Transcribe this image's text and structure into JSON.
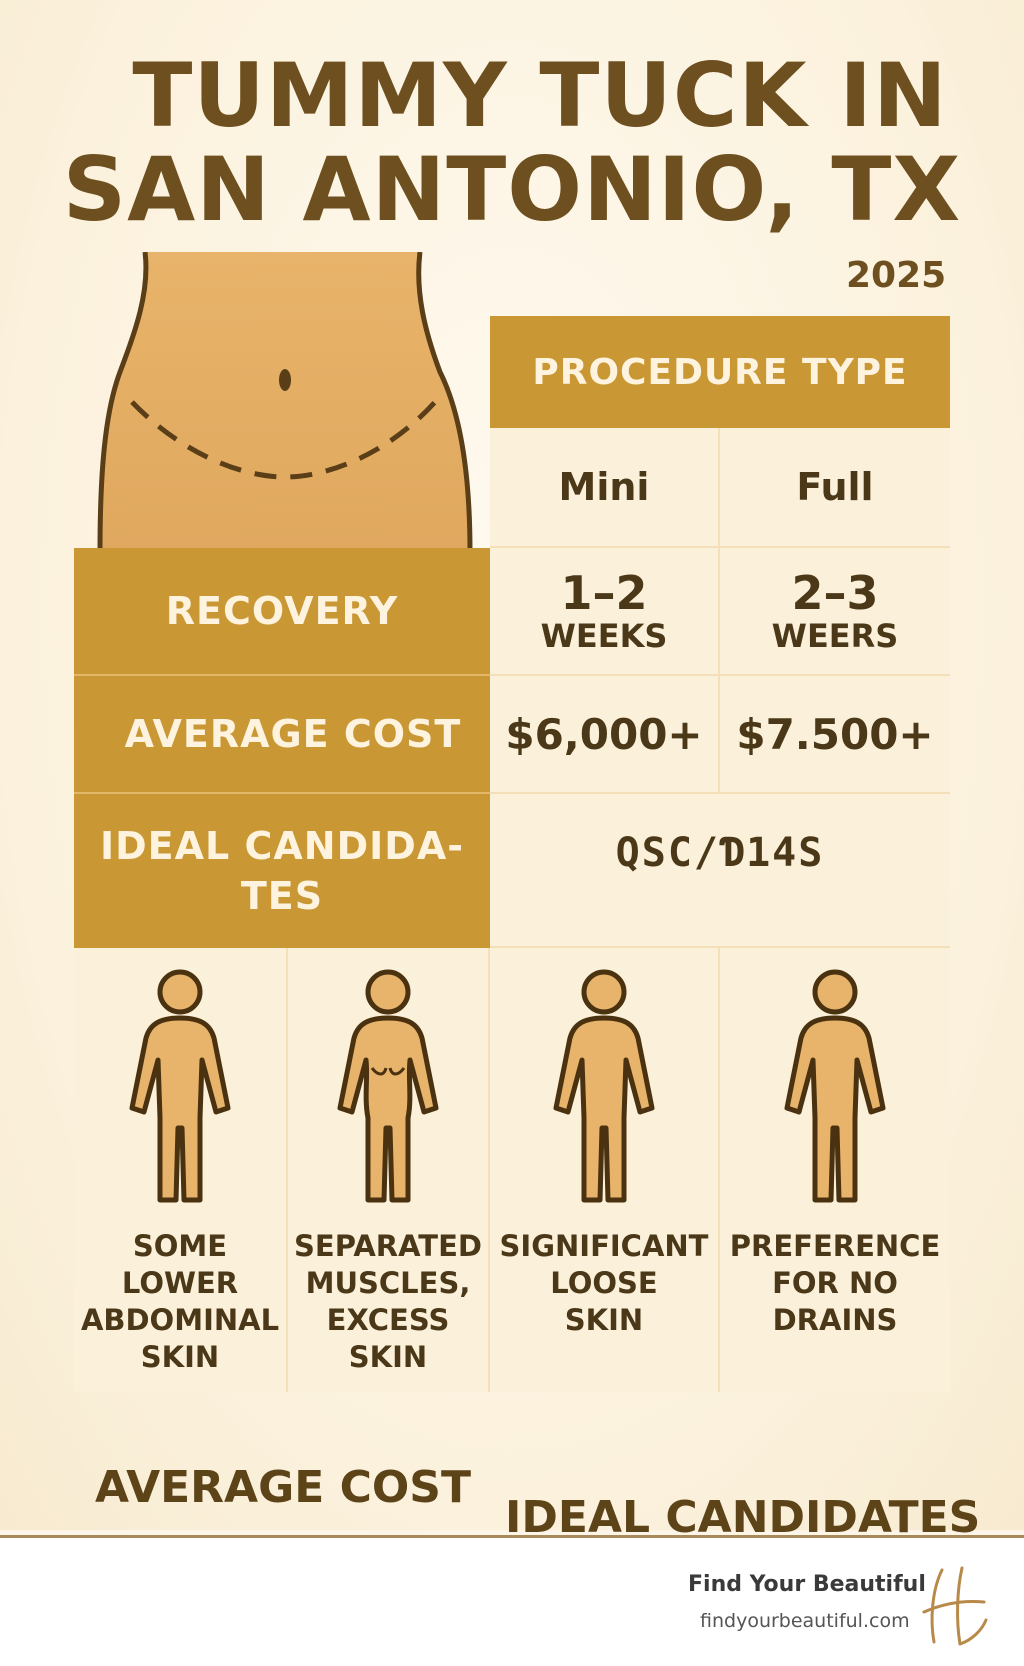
{
  "title": {
    "line1": "TUMMY TUCK IN",
    "line2": "SAN ANTONIO, TX",
    "year": "2025"
  },
  "table": {
    "header": "PROCEDURE TYPE",
    "columns": [
      "Mini",
      "Full"
    ],
    "recovery": {
      "label": "RECOVERY",
      "mini_num": "1–2",
      "mini_unit": "WEEKS",
      "full_num": "2–3",
      "full_unit": "WEERS"
    },
    "cost": {
      "label": "AVERAGE COST",
      "mini": "$6,000+",
      "full": "$7.500+"
    },
    "candidates": {
      "label_line1": "IDEAL CANDIDA-",
      "label_line2": "TES",
      "value": "QSC/Ɗ14S"
    }
  },
  "figures": [
    {
      "icon": "person-icon",
      "lines": [
        "SOME",
        "LOWER",
        "ABDOMINAL",
        "SKIN"
      ]
    },
    {
      "icon": "female-body-icon",
      "lines": [
        "SEPARATED",
        "MUSCLES,",
        "EXCESS",
        "SKIN"
      ]
    },
    {
      "icon": "person-icon",
      "lines": [
        "SIGNIFICANT",
        "LOOSE",
        "SKIN"
      ]
    },
    {
      "icon": "person-icon",
      "lines": [
        "PREFERENCE",
        "FOR NO",
        "DRAINS"
      ]
    }
  ],
  "footer_labels": {
    "left": "AVERAGE COST",
    "right": "IDEAL CANDIDATES"
  },
  "brand": {
    "name": "Find Your Beautiful",
    "url": "findyourbeautiful.com",
    "logo_icon": "script-h-logo-icon"
  },
  "colors": {
    "gold": "#c99733",
    "cream": "#fbf0d9",
    "brown": "#6e5020"
  }
}
